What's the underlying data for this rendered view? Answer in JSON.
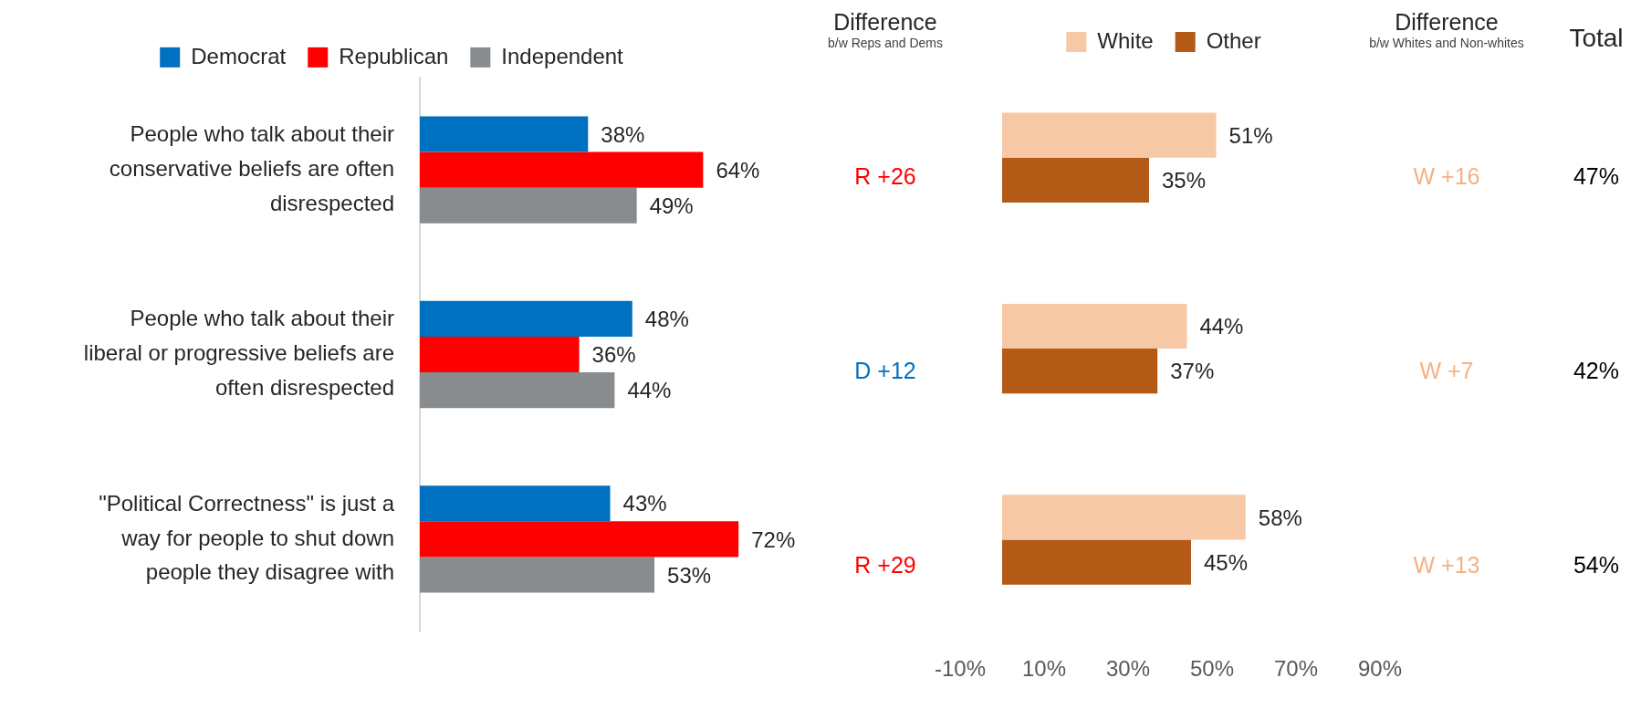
{
  "chart_data": [
    {
      "type": "bar",
      "orientation": "horizontal",
      "categories": [
        "People who talk about their conservative beliefs are often disrespected",
        "People who talk about their liberal or progressive beliefs are often disrespected",
        "\"Political Correctness\" is just a way for people to shut down people they disagree with"
      ],
      "series": [
        {
          "name": "Democrat",
          "color": "#0070c0",
          "values": [
            38,
            48,
            43
          ],
          "value_labels": [
            "38%",
            "48%",
            "43%"
          ]
        },
        {
          "name": "Republican",
          "color": "#ff0000",
          "values": [
            64,
            36,
            72
          ],
          "value_labels": [
            "64%",
            "36%",
            "72%"
          ]
        },
        {
          "name": "Independent",
          "color": "#898c8e",
          "values": [
            49,
            44,
            53
          ],
          "value_labels": [
            "49%",
            "44%",
            "53%"
          ]
        }
      ],
      "tick_labels": "y",
      "legend": "top",
      "grid": false
    },
    {
      "type": "other",
      "title": "Difference",
      "subtitle": "b/w Reps and Dems",
      "annotations": [
        "R +26",
        "D +12",
        "R +29"
      ],
      "colors": [
        "#ff0000",
        "#0070c0",
        "#ff0000"
      ]
    },
    {
      "type": "bar",
      "orientation": "horizontal",
      "categories": [
        null,
        null,
        null
      ],
      "series": [
        {
          "name": "White",
          "color": "#f6c8a6",
          "values": [
            51,
            44,
            58
          ],
          "value_labels": [
            "51%",
            "44%",
            "58%"
          ]
        },
        {
          "name": "Other",
          "color": "#b35a16",
          "values": [
            35,
            37,
            45
          ],
          "value_labels": [
            "35%",
            "37%",
            "45%"
          ]
        }
      ],
      "xlim": [
        -10,
        90
      ],
      "xticks": [
        {
          "value": -10,
          "label": "-10%"
        },
        {
          "value": 10,
          "label": "10%"
        },
        {
          "value": 30,
          "label": "30%"
        },
        {
          "value": 50,
          "label": "50%"
        },
        {
          "value": 70,
          "label": "70%"
        },
        {
          "value": 90,
          "label": "90%"
        }
      ],
      "tick_labels": "x",
      "legend": "top",
      "grid": false
    },
    {
      "type": "other",
      "title": "Difference",
      "subtitle": "b/w Whites and Non-whites",
      "annotations": [
        "W +16",
        "W +7",
        "W +13"
      ],
      "colors": [
        "#f4b183",
        "#f4b183",
        "#f4b183"
      ]
    },
    {
      "type": "other",
      "title": "Total",
      "annotations": [
        "47%",
        "42%",
        "54%"
      ],
      "colors": [
        "#000000",
        "#000000",
        "#000000"
      ]
    }
  ]
}
